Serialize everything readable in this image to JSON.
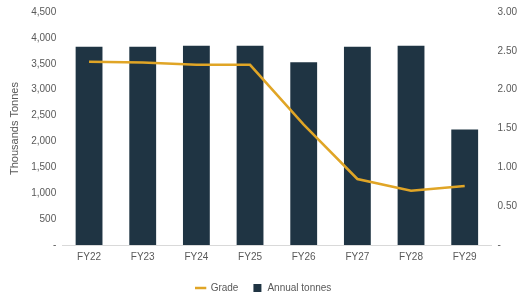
{
  "chart_data": {
    "type": "bar",
    "y_label": "Thousands Tonnes",
    "categories": [
      "FY22",
      "FY23",
      "FY24",
      "FY25",
      "FY26",
      "FY27",
      "FY28",
      "FY29"
    ],
    "series": [
      {
        "name": "Annual tonnes",
        "type": "bar",
        "color": "#1f3443",
        "values": [
          3830,
          3830,
          3850,
          3850,
          3530,
          3830,
          3850,
          2230
        ]
      },
      {
        "name": "Grade",
        "type": "line",
        "color": "#e0a526",
        "axis": "y2",
        "values": [
          2.36,
          2.35,
          2.32,
          2.32,
          1.55,
          0.85,
          0.7,
          0.76
        ]
      }
    ],
    "ylim": [
      0,
      4500
    ],
    "yticks": [
      {
        "value": 0,
        "label": "-"
      },
      500,
      {
        "value": 1000,
        "label": "1,000"
      },
      {
        "value": 1500,
        "label": "1,500"
      },
      {
        "value": 2000,
        "label": "2,000"
      },
      {
        "value": 2500,
        "label": "2,500"
      },
      {
        "value": 3000,
        "label": "3,000"
      },
      {
        "value": 3500,
        "label": "3,500"
      },
      {
        "value": 4000,
        "label": "4,000"
      },
      {
        "value": 4500,
        "label": "4,500"
      }
    ],
    "y2lim": [
      0,
      3
    ],
    "y2ticks": [
      {
        "value": 0,
        "label": "-"
      },
      {
        "value": 0.5,
        "label": "0.50"
      },
      {
        "value": 1,
        "label": "1.00"
      },
      {
        "value": 1.5,
        "label": "1.50"
      },
      {
        "value": 2,
        "label": "2.00"
      },
      {
        "value": 2.5,
        "label": "2.50"
      },
      {
        "value": 3,
        "label": "3.00"
      }
    ],
    "grid": false,
    "legend": "bottom"
  }
}
